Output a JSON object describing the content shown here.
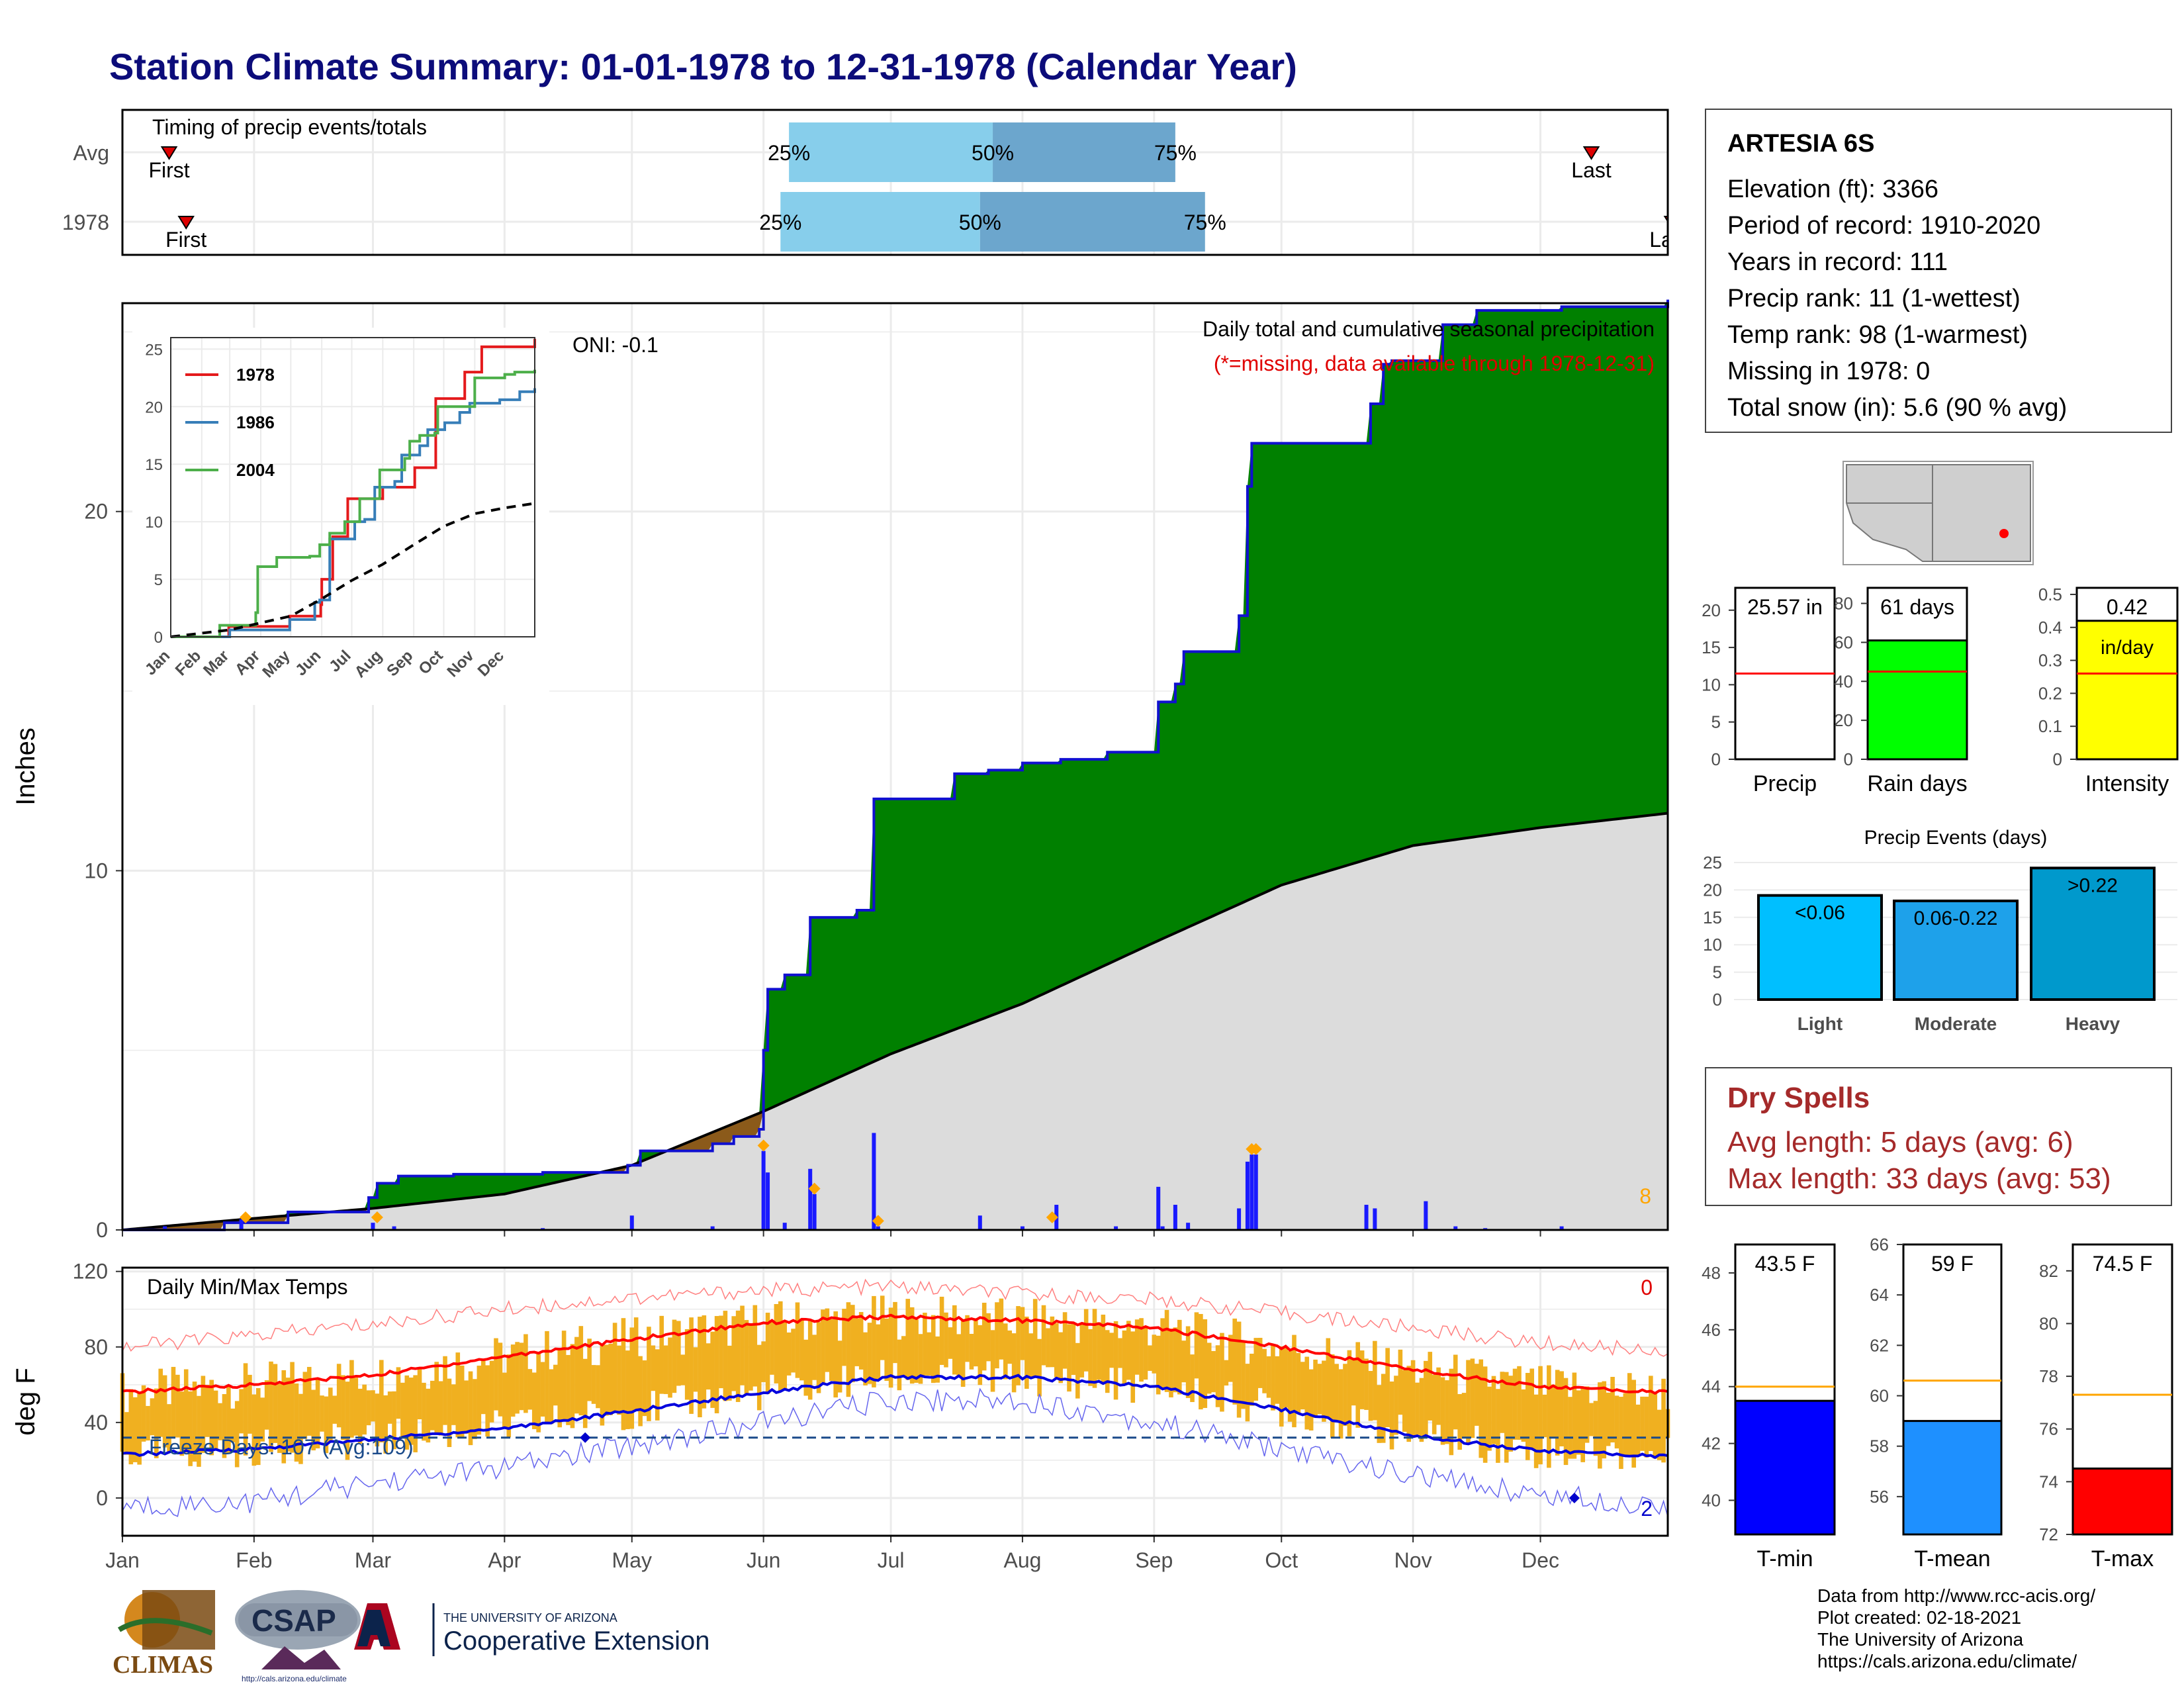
{
  "title": "Station Climate Summary: 01-01-1978 to 12-31-1978 (Calendar Year)",
  "station": {
    "name": "ARTESIA 6S",
    "lines": [
      "Elevation (ft): 3366",
      "Period of record: 1910-2020",
      "Years in record: 111",
      "Precip rank: 11 (1-wettest)",
      "Temp rank: 98 (1-warmest)",
      "Missing in 1978: 0",
      "Total snow (in): 5.6 (90 % avg)"
    ]
  },
  "dry_spells": {
    "title": "Dry Spells",
    "avg_length": "Avg length: 5 days (avg: 6)",
    "max_length": "Max length: 33 days (avg: 53)"
  },
  "credits": [
    "Data from http://www.rcc-acis.org/",
    "Plot created: 02-18-2021",
    "The University of Arizona",
    "https://cals.arizona.edu/climate/"
  ],
  "logos": {
    "climas": "CLIMAS",
    "csap": "CSAP",
    "csap_url": "http://cals.arizona.edu/climate",
    "ua_small": "THE UNIVERSITY OF ARIZONA",
    "ua_big": "Cooperative Extension"
  },
  "colors": {
    "title": "#0c0c7a",
    "cumulative_fill": "#008000",
    "cumulative_line": "#1010d0",
    "normal_fill": "#dcdcdc",
    "deficit_fill": "#8b5a1a",
    "daily_bars": "#1a1aff",
    "temp_bars": "#f0b020",
    "tmax_avg": "#ff0000",
    "tmin_avg": "#0000dd",
    "timing_light": "#87ceeb",
    "timing_dark": "#6ca6cd",
    "rain_days": "#00ff00",
    "intensity": "#ffff00",
    "event_light": "#00bfff",
    "event_mod": "#1ea1ea",
    "event_heavy": "#0099cc",
    "tmin_bar": "#0000ff",
    "tmean_bar": "#1e90ff",
    "tmax_bar": "#ff0000",
    "dry_text": "#a52a2a"
  },
  "chart_data": [
    {
      "type": "bar",
      "name": "timing",
      "title": "Timing of precip events/totals",
      "categories": [
        "Avg",
        "1978"
      ],
      "first_label": "First",
      "last_label": "Last",
      "last_label_clipped": "La",
      "xlim": [
        1,
        365
      ],
      "rows": [
        {
          "label": "Avg",
          "first": 12,
          "last": 347,
          "p25": 158,
          "p50": 206,
          "p75": 249
        },
        {
          "label": "1978",
          "first": 16,
          "last": 366,
          "p25": 156,
          "p50": 203,
          "p75": 256
        }
      ],
      "pct_labels": [
        "25%",
        "50%",
        "75%"
      ]
    },
    {
      "type": "area",
      "name": "precip",
      "title": "Daily total and cumulative seasonal precipitation",
      "subtitle": "(*=missing, data available through 1978-12-31)",
      "oni": "ONI: -0.1",
      "ylabel": "Inches",
      "ylim": [
        0,
        25.8
      ],
      "yticks": [
        0,
        10,
        20
      ],
      "xlim": [
        1,
        365
      ],
      "corner_count": "8",
      "cumulative": [
        [
          1,
          0
        ],
        [
          25,
          0.2
        ],
        [
          40,
          0.5
        ],
        [
          59,
          0.9
        ],
        [
          61,
          1.3
        ],
        [
          66,
          1.5
        ],
        [
          79,
          1.55
        ],
        [
          100,
          1.6
        ],
        [
          120,
          1.8
        ],
        [
          123,
          2.2
        ],
        [
          140,
          2.4
        ],
        [
          145,
          2.6
        ],
        [
          151,
          2.8
        ],
        [
          152,
          5.0
        ],
        [
          153,
          6.7
        ],
        [
          157,
          7.1
        ],
        [
          163,
          8.7
        ],
        [
          174,
          8.9
        ],
        [
          178,
          12.0
        ],
        [
          197,
          12.7
        ],
        [
          205,
          12.8
        ],
        [
          213,
          13.0
        ],
        [
          222,
          13.1
        ],
        [
          233,
          13.3
        ],
        [
          245,
          14.7
        ],
        [
          249,
          15.2
        ],
        [
          251,
          16.1
        ],
        [
          262,
          16.1
        ],
        [
          264,
          17.1
        ],
        [
          266,
          20.7
        ],
        [
          267,
          21.9
        ],
        [
          291,
          21.9
        ],
        [
          295,
          23.0
        ],
        [
          298,
          24.1
        ],
        [
          300,
          24.2
        ],
        [
          309,
          24.2
        ],
        [
          312,
          25.2
        ],
        [
          320,
          25.6
        ],
        [
          340,
          25.7
        ],
        [
          365,
          25.9
        ]
      ],
      "normal": [
        [
          1,
          0
        ],
        [
          30,
          0.3
        ],
        [
          60,
          0.6
        ],
        [
          91,
          1.0
        ],
        [
          121,
          1.8
        ],
        [
          152,
          3.3
        ],
        [
          182,
          4.9
        ],
        [
          213,
          6.3
        ],
        [
          244,
          8.0
        ],
        [
          274,
          9.6
        ],
        [
          305,
          10.7
        ],
        [
          335,
          11.2
        ],
        [
          365,
          11.6
        ]
      ],
      "daily": [
        [
          11,
          0.1
        ],
        [
          29,
          0.3
        ],
        [
          60,
          0.2
        ],
        [
          65,
          0.1
        ],
        [
          100,
          0.05
        ],
        [
          121,
          0.4
        ],
        [
          140,
          0.1
        ],
        [
          152,
          2.2
        ],
        [
          153,
          1.6
        ],
        [
          157,
          0.2
        ],
        [
          163,
          1.7
        ],
        [
          164,
          1.0
        ],
        [
          178,
          2.7
        ],
        [
          179,
          0.1
        ],
        [
          203,
          0.4
        ],
        [
          213,
          0.1
        ],
        [
          221,
          0.7
        ],
        [
          235,
          0.1
        ],
        [
          245,
          1.2
        ],
        [
          246,
          0.1
        ],
        [
          249,
          0.7
        ],
        [
          252,
          0.2
        ],
        [
          264,
          0.6
        ],
        [
          266,
          1.9
        ],
        [
          267,
          2.1
        ],
        [
          268,
          2.1
        ],
        [
          294,
          0.7
        ],
        [
          296,
          0.6
        ],
        [
          308,
          0.8
        ],
        [
          315,
          0.1
        ],
        [
          322,
          0.05
        ],
        [
          340,
          0.1
        ]
      ],
      "snow_markers": [
        30,
        61,
        152,
        164,
        179,
        220,
        267,
        268
      ]
    },
    {
      "type": "line",
      "name": "inset",
      "categories": [
        "Jan",
        "Feb",
        "Mar",
        "Apr",
        "May",
        "Jun",
        "Jul",
        "Aug",
        "Sep",
        "Oct",
        "Nov",
        "Dec"
      ],
      "ylim": [
        0,
        26
      ],
      "yticks": [
        0,
        5,
        10,
        15,
        20,
        25
      ],
      "series": [
        {
          "name": "1978",
          "color": "#e41a1c",
          "points": [
            [
              1,
              0
            ],
            [
              59,
              0.9
            ],
            [
              120,
              1.8
            ],
            [
              151,
              2.8
            ],
            [
              152,
              5.0
            ],
            [
              163,
              8.7
            ],
            [
              178,
              12.0
            ],
            [
              213,
              13.0
            ],
            [
              245,
              14.7
            ],
            [
              266,
              20.7
            ],
            [
              295,
              23.0
            ],
            [
              312,
              25.2
            ],
            [
              365,
              25.9
            ]
          ]
        },
        {
          "name": "1986",
          "color": "#377eb8",
          "points": [
            [
              1,
              0
            ],
            [
              60,
              0.6
            ],
            [
              120,
              1.5
            ],
            [
              145,
              3.0
            ],
            [
              150,
              3.2
            ],
            [
              160,
              8.5
            ],
            [
              185,
              10.0
            ],
            [
              195,
              10.2
            ],
            [
              205,
              13.0
            ],
            [
              225,
              13.5
            ],
            [
              232,
              15.8
            ],
            [
              250,
              16.6
            ],
            [
              258,
              18.0
            ],
            [
              275,
              18.6
            ],
            [
              290,
              19.5
            ],
            [
              300,
              20.3
            ],
            [
              330,
              20.6
            ],
            [
              350,
              21.3
            ],
            [
              365,
              21.6
            ]
          ]
        },
        {
          "name": "2004",
          "color": "#4daf4a",
          "points": [
            [
              1,
              0
            ],
            [
              50,
              1.0
            ],
            [
              86,
              2.1
            ],
            [
              88,
              6.1
            ],
            [
              107,
              6.9
            ],
            [
              140,
              7.0
            ],
            [
              150,
              8.0
            ],
            [
              160,
              9.0
            ],
            [
              175,
              10.0
            ],
            [
              190,
              12.0
            ],
            [
              210,
              14.5
            ],
            [
              235,
              15.5
            ],
            [
              240,
              17.0
            ],
            [
              250,
              17.5
            ],
            [
              265,
              17.7
            ],
            [
              268,
              20.0
            ],
            [
              300,
              20.0
            ],
            [
              305,
              22.5
            ],
            [
              335,
              22.8
            ],
            [
              345,
              23.0
            ],
            [
              365,
              23.2
            ]
          ]
        },
        {
          "name": "normal",
          "color": "#000000",
          "dashed": true,
          "points": [
            [
              1,
              0
            ],
            [
              60,
              0.6
            ],
            [
              121,
              1.8
            ],
            [
              152,
              3.3
            ],
            [
              182,
              4.9
            ],
            [
              213,
              6.3
            ],
            [
              244,
              8.0
            ],
            [
              274,
              9.6
            ],
            [
              305,
              10.7
            ],
            [
              335,
              11.2
            ],
            [
              365,
              11.6
            ]
          ]
        }
      ]
    },
    {
      "type": "bar",
      "name": "temps",
      "title": "Daily Min/Max Temps",
      "ylabel": "deg F",
      "ylim": [
        -20,
        122
      ],
      "yticks": [
        0,
        40,
        80,
        120
      ],
      "xlim": [
        1,
        365
      ],
      "months": [
        "Jan",
        "Feb",
        "Mar",
        "Apr",
        "May",
        "Jun",
        "Jul",
        "Aug",
        "Sep",
        "Oct",
        "Nov",
        "Dec"
      ],
      "freeze_label": "Freeze Days: 107 (Avg:109)",
      "freeze_line": 32,
      "count_top": "0",
      "count_bottom": "2",
      "tmax_avg_points": [
        [
          1,
          56
        ],
        [
          32,
          60
        ],
        [
          60,
          65
        ],
        [
          91,
          75
        ],
        [
          121,
          84
        ],
        [
          152,
          93
        ],
        [
          182,
          96
        ],
        [
          213,
          94
        ],
        [
          244,
          90
        ],
        [
          274,
          80
        ],
        [
          305,
          68
        ],
        [
          335,
          59
        ],
        [
          365,
          56
        ]
      ],
      "tmin_avg_points": [
        [
          1,
          23
        ],
        [
          32,
          26
        ],
        [
          60,
          31
        ],
        [
          91,
          37
        ],
        [
          121,
          46
        ],
        [
          152,
          56
        ],
        [
          182,
          64
        ],
        [
          213,
          64
        ],
        [
          244,
          59
        ],
        [
          274,
          47
        ],
        [
          305,
          33
        ],
        [
          335,
          25
        ],
        [
          365,
          22
        ]
      ],
      "record_high_points": [
        [
          1,
          80
        ],
        [
          32,
          86
        ],
        [
          60,
          92
        ],
        [
          91,
          100
        ],
        [
          121,
          106
        ],
        [
          152,
          110
        ],
        [
          182,
          112
        ],
        [
          213,
          108
        ],
        [
          244,
          105
        ],
        [
          274,
          98
        ],
        [
          305,
          90
        ],
        [
          335,
          82
        ],
        [
          365,
          78
        ]
      ],
      "record_low_points": [
        [
          1,
          -5
        ],
        [
          32,
          -2
        ],
        [
          60,
          8
        ],
        [
          91,
          16
        ],
        [
          121,
          28
        ],
        [
          152,
          40
        ],
        [
          182,
          52
        ],
        [
          213,
          52
        ],
        [
          244,
          40
        ],
        [
          274,
          26
        ],
        [
          305,
          12
        ],
        [
          335,
          2
        ],
        [
          365,
          -4
        ]
      ]
    },
    {
      "type": "bar",
      "name": "precip_summary",
      "categories": [
        "Precip",
        "Rain days",
        "Intensity"
      ],
      "values": [
        25.57,
        61,
        0.42
      ],
      "averages": [
        11.5,
        45,
        0.26
      ],
      "labels": [
        "25.57 in",
        "61 days",
        "0.42"
      ],
      "intensity_unit": "in/day",
      "ylims": [
        [
          0,
          23
        ],
        [
          0,
          88
        ],
        [
          0,
          0.52
        ]
      ],
      "yticks": [
        [
          0,
          5,
          10,
          15,
          20
        ],
        [
          0,
          20,
          40,
          60,
          80
        ],
        [
          0.0,
          0.1,
          0.2,
          0.3,
          0.4,
          0.5
        ]
      ]
    },
    {
      "type": "bar",
      "name": "precip_events",
      "title": "Precip Events (days)",
      "categories": [
        "Light",
        "Moderate",
        "Heavy"
      ],
      "values": [
        19,
        18,
        24
      ],
      "labels": [
        "<0.06",
        "0.06-0.22",
        ">0.22"
      ],
      "ylim": [
        0,
        25
      ],
      "yticks": [
        0,
        5,
        10,
        15,
        20,
        25
      ]
    },
    {
      "type": "bar",
      "name": "temp_summary",
      "categories": [
        "T-min",
        "T-mean",
        "T-max"
      ],
      "values": [
        43.5,
        59,
        74.5
      ],
      "averages": [
        44.0,
        60.6,
        77.3
      ],
      "labels": [
        "43.5 F",
        "59 F",
        "74.5 F"
      ],
      "ylims": [
        [
          38.8,
          49.0
        ],
        [
          54.5,
          66.0
        ],
        [
          72.0,
          83.0
        ]
      ],
      "yticks": [
        [
          40,
          42,
          44,
          46,
          48
        ],
        [
          56,
          58,
          60,
          62,
          64,
          66
        ],
        [
          72,
          74,
          76,
          78,
          80,
          82
        ]
      ]
    }
  ]
}
